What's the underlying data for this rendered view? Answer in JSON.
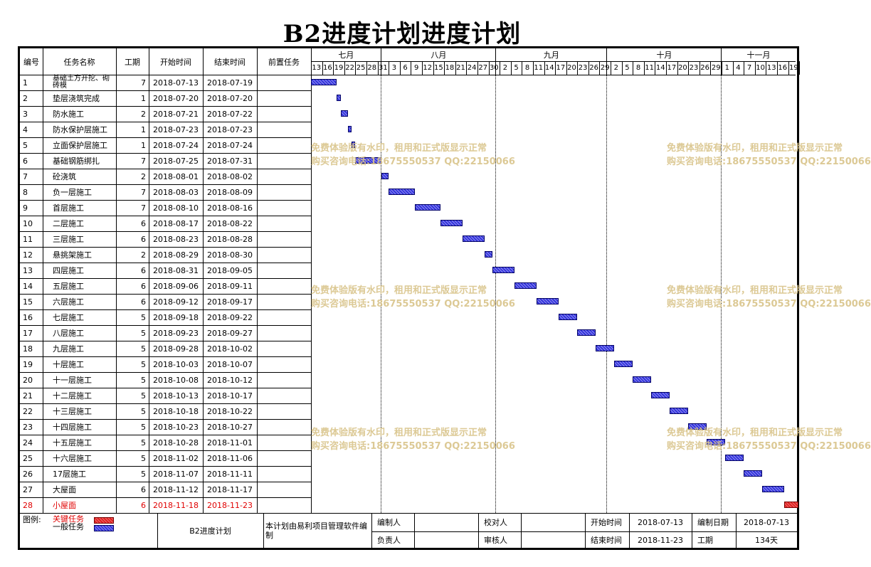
{
  "title": "B2进度计划进度计划",
  "headers": {
    "no": "编号",
    "name": "任务名称",
    "duration": "工期",
    "start": "开始时间",
    "end": "结束时间",
    "pred": "前置任务"
  },
  "months": [
    "七月",
    "八月",
    "九月",
    "十月",
    "十一月"
  ],
  "days": [
    "13",
    "16",
    "19",
    "22",
    "25",
    "28",
    "31",
    "3",
    "6",
    "9",
    "12",
    "15",
    "18",
    "21",
    "24",
    "27",
    "30",
    "2",
    "5",
    "8",
    "11",
    "14",
    "17",
    "20",
    "23",
    "26",
    "29",
    "2",
    "5",
    "8",
    "11",
    "14",
    "17",
    "20",
    "23",
    "26",
    "29",
    "1",
    "4",
    "7",
    "10",
    "13",
    "16",
    "19"
  ],
  "tasks": [
    {
      "no": "1",
      "name": "基础土方开挖、砌砖模",
      "duration": "7",
      "start": "2018-07-13",
      "end": "2018-07-19",
      "critical": false
    },
    {
      "no": "2",
      "name": "垫层浇筑完成",
      "duration": "1",
      "start": "2018-07-20",
      "end": "2018-07-20",
      "critical": false
    },
    {
      "no": "3",
      "name": "防水施工",
      "duration": "2",
      "start": "2018-07-21",
      "end": "2018-07-22",
      "critical": false
    },
    {
      "no": "4",
      "name": "防水保护层施工",
      "duration": "1",
      "start": "2018-07-23",
      "end": "2018-07-23",
      "critical": false
    },
    {
      "no": "5",
      "name": "立面保护层施工",
      "duration": "1",
      "start": "2018-07-24",
      "end": "2018-07-24",
      "critical": false
    },
    {
      "no": "6",
      "name": "基础钢筋绑扎",
      "duration": "7",
      "start": "2018-07-25",
      "end": "2018-07-31",
      "critical": false
    },
    {
      "no": "7",
      "name": "砼浇筑",
      "duration": "2",
      "start": "2018-08-01",
      "end": "2018-08-02",
      "critical": false
    },
    {
      "no": "8",
      "name": "负一层施工",
      "duration": "7",
      "start": "2018-08-03",
      "end": "2018-08-09",
      "critical": false
    },
    {
      "no": "9",
      "name": "首层施工",
      "duration": "7",
      "start": "2018-08-10",
      "end": "2018-08-16",
      "critical": false
    },
    {
      "no": "10",
      "name": "二层施工",
      "duration": "6",
      "start": "2018-08-17",
      "end": "2018-08-22",
      "critical": false
    },
    {
      "no": "11",
      "name": "三层施工",
      "duration": "6",
      "start": "2018-08-23",
      "end": "2018-08-28",
      "critical": false
    },
    {
      "no": "12",
      "name": "悬挑架施工",
      "duration": "2",
      "start": "2018-08-29",
      "end": "2018-08-30",
      "critical": false
    },
    {
      "no": "13",
      "name": "四层施工",
      "duration": "6",
      "start": "2018-08-31",
      "end": "2018-09-05",
      "critical": false
    },
    {
      "no": "14",
      "name": "五层施工",
      "duration": "6",
      "start": "2018-09-06",
      "end": "2018-09-11",
      "critical": false
    },
    {
      "no": "15",
      "name": "六层施工",
      "duration": "6",
      "start": "2018-09-12",
      "end": "2018-09-17",
      "critical": false
    },
    {
      "no": "16",
      "name": "七层施工",
      "duration": "5",
      "start": "2018-09-18",
      "end": "2018-09-22",
      "critical": false
    },
    {
      "no": "17",
      "name": "八层施工",
      "duration": "5",
      "start": "2018-09-23",
      "end": "2018-09-27",
      "critical": false
    },
    {
      "no": "18",
      "name": "九层施工",
      "duration": "5",
      "start": "2018-09-28",
      "end": "2018-10-02",
      "critical": false
    },
    {
      "no": "19",
      "name": "十层施工",
      "duration": "5",
      "start": "2018-10-03",
      "end": "2018-10-07",
      "critical": false
    },
    {
      "no": "20",
      "name": "十一层施工",
      "duration": "5",
      "start": "2018-10-08",
      "end": "2018-10-12",
      "critical": false
    },
    {
      "no": "21",
      "name": "十二层施工",
      "duration": "5",
      "start": "2018-10-13",
      "end": "2018-10-17",
      "critical": false
    },
    {
      "no": "22",
      "name": "十三层施工",
      "duration": "5",
      "start": "2018-10-18",
      "end": "2018-10-22",
      "critical": false
    },
    {
      "no": "23",
      "name": "十四层施工",
      "duration": "5",
      "start": "2018-10-23",
      "end": "2018-10-27",
      "critical": false
    },
    {
      "no": "24",
      "name": "十五层施工",
      "duration": "5",
      "start": "2018-10-28",
      "end": "2018-11-01",
      "critical": false
    },
    {
      "no": "25",
      "name": "十六层施工",
      "duration": "5",
      "start": "2018-11-02",
      "end": "2018-11-06",
      "critical": false
    },
    {
      "no": "26",
      "name": "17层施工",
      "duration": "5",
      "start": "2018-11-07",
      "end": "2018-11-11",
      "critical": false
    },
    {
      "no": "27",
      "name": "大屋面",
      "duration": "6",
      "start": "2018-11-12",
      "end": "2018-11-17",
      "critical": false
    },
    {
      "no": "28",
      "name": "小屋面",
      "duration": "6",
      "start": "2018-11-18",
      "end": "2018-11-23",
      "critical": true
    }
  ],
  "watermark": {
    "line1": "免费体验版有水印，租用和正式版显示正常",
    "line2": "购买咨询电话:18675550537 QQ:22150066"
  },
  "footer": {
    "legend_label": "图例:",
    "legend_critical": "关键任务",
    "legend_normal": "一般任务",
    "plan_name": "B2进度计划",
    "software_note": "本计划由易利项目管理软件编制",
    "compiler_label": "编制人",
    "compiler_value": "",
    "checker_label": "校对人",
    "checker_value": "",
    "start_label": "开始时间",
    "start_value": "2018-07-13",
    "date_label": "编制日期",
    "date_value": "2018-07-13",
    "manager_label": "负责人",
    "manager_value": "",
    "reviewer_label": "审核人",
    "reviewer_value": "",
    "end_label": "结束时间",
    "end_value": "2018-11-23",
    "duration_label": "工期",
    "duration_value": "134天"
  },
  "colors": {
    "critical": "#e02020",
    "normal": "#3333dd",
    "watermark": "#d9c48a"
  }
}
